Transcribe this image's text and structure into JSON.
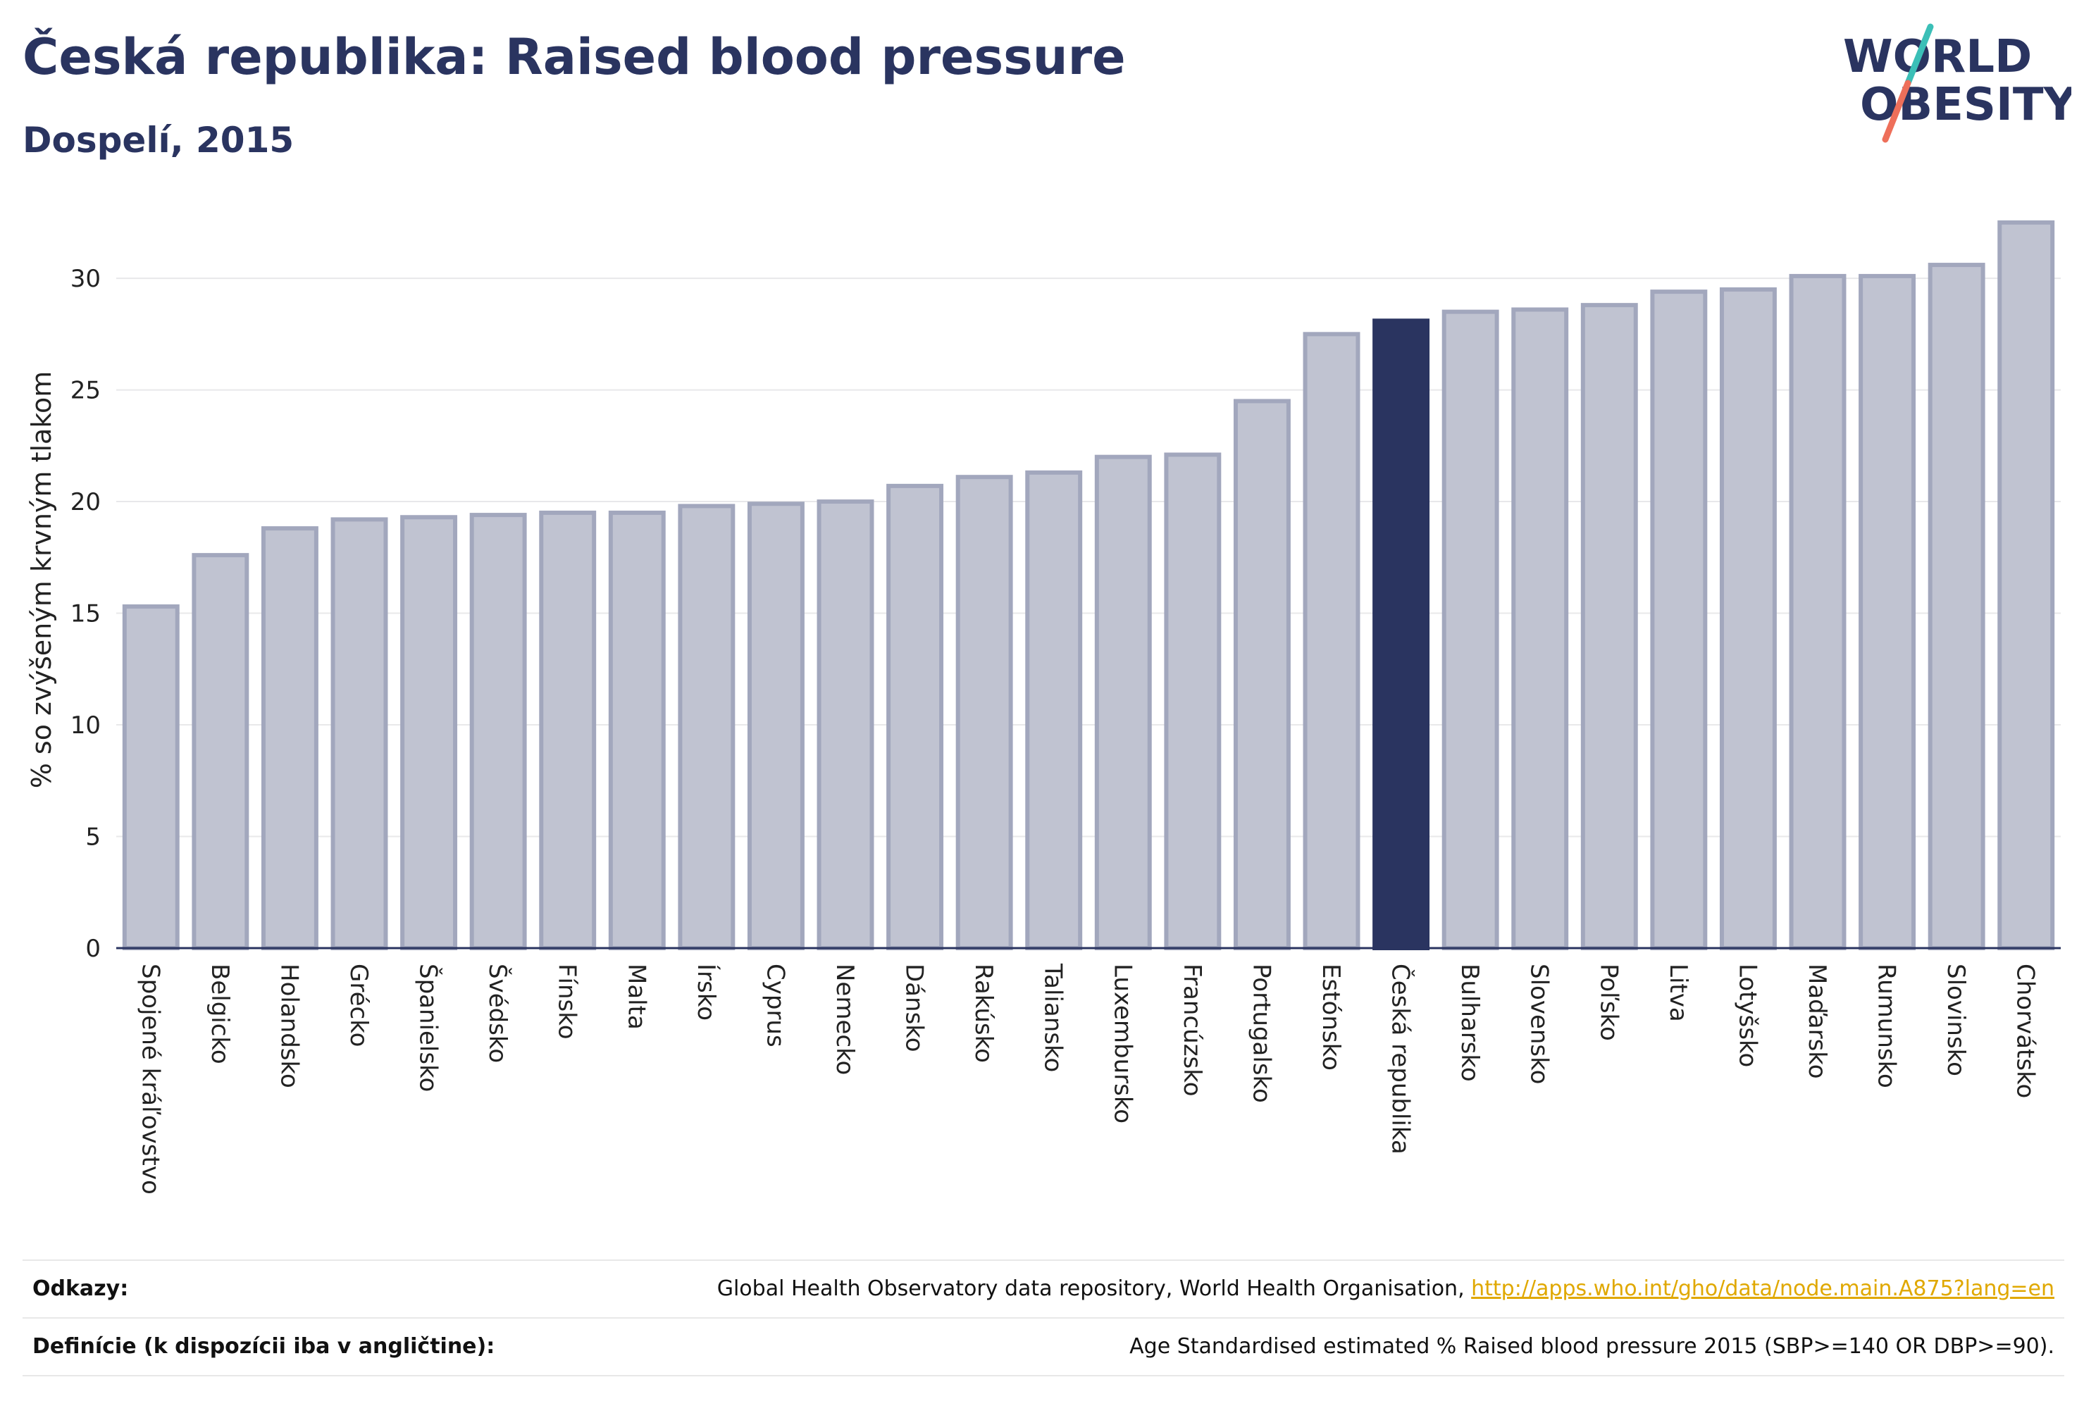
{
  "header": {
    "title": "Česká republika: Raised blood pressure",
    "subtitle": "Dospelí, 2015"
  },
  "logo": {
    "line1": "WORLD",
    "line2": "OBESITY"
  },
  "colors": {
    "bar_fill": "#c0c3d1",
    "bar_stroke": "#a2a7bd",
    "highlight": "#2a3460",
    "grid": "#e8e8ea",
    "axis": "#2a3460"
  },
  "chart_data": {
    "type": "bar",
    "ylabel": "% so zvýšeným krvným tlakom",
    "ylim": [
      0,
      33
    ],
    "yticks": [
      0,
      5,
      10,
      15,
      20,
      25,
      30
    ],
    "grid": true,
    "highlight": "Česká republika",
    "categories": [
      "Spojené kráľovstvo",
      "Belgicko",
      "Holandsko",
      "Grécko",
      "Španielsko",
      "Švédsko",
      "Fínsko",
      "Malta",
      "Írsko",
      "Cyprus",
      "Nemecko",
      "Dánsko",
      "Rakúsko",
      "Taliansko",
      "Luxembursko",
      "Francúzsko",
      "Portugalsko",
      "Estónsko",
      "Česká republika",
      "Bulharsko",
      "Slovensko",
      "Poľsko",
      "Litva",
      "Lotyšsko",
      "Maďarsko",
      "Rumunsko",
      "Slovinsko",
      "Chorvátsko"
    ],
    "values": [
      15.3,
      17.6,
      18.8,
      19.2,
      19.3,
      19.4,
      19.5,
      19.5,
      19.8,
      19.9,
      20.0,
      20.7,
      21.1,
      21.3,
      22.0,
      22.1,
      24.5,
      27.5,
      28.1,
      28.5,
      28.6,
      28.8,
      29.4,
      29.5,
      30.1,
      30.1,
      30.6,
      32.5
    ]
  },
  "footer": {
    "sources_label": "Odkazy:",
    "sources_text": "Global Health Observatory data repository, World Health Organisation, ",
    "sources_link": "http://apps.who.int/gho/data/node.main.A875?lang=en",
    "definitions_label": "Definície (k dispozícii iba v angličtine):",
    "definitions_text": "Age Standardised estimated % Raised blood pressure 2015 (SBP>=140 OR DBP>=90)."
  }
}
